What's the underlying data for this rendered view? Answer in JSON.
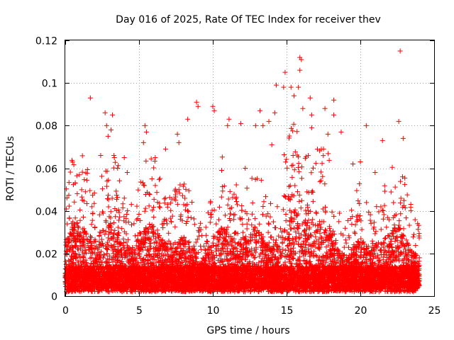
{
  "chart_data": {
    "type": "scatter",
    "title": "Day 016 of 2025, Rate Of TEC Index for receiver thev",
    "xlabel": "GPS time / hours",
    "ylabel": "ROTI / TECUs",
    "xlim": [
      0,
      25
    ],
    "ylim": [
      0,
      0.12
    ],
    "xticks": [
      0,
      5,
      10,
      15,
      20,
      25
    ],
    "yticks": [
      0,
      0.02,
      0.04,
      0.06,
      0.08,
      0.1,
      0.12
    ],
    "xtick_labels": [
      "0",
      "5",
      "10",
      "15",
      "20",
      "25"
    ],
    "ytick_labels": [
      "0",
      "0.02",
      "0.04",
      "0.06",
      "0.08",
      "0.1",
      "0.12"
    ],
    "grid": true,
    "marker": "plus",
    "color": "#ff0000",
    "data_extent_x": [
      0,
      24
    ],
    "series": [
      {
        "name": "ROTI",
        "note": "dense point cloud; representative points listed below",
        "points": [
          [
            1.7,
            0.093
          ],
          [
            2.7,
            0.086
          ],
          [
            2.8,
            0.08
          ],
          [
            3.2,
            0.085
          ],
          [
            3.1,
            0.078
          ],
          [
            2.9,
            0.075
          ],
          [
            2.4,
            0.066
          ],
          [
            3.3,
            0.066
          ],
          [
            4.0,
            0.065
          ],
          [
            5.4,
            0.08
          ],
          [
            5.5,
            0.077
          ],
          [
            5.3,
            0.072
          ],
          [
            6.8,
            0.069
          ],
          [
            7.6,
            0.076
          ],
          [
            7.7,
            0.072
          ],
          [
            8.3,
            0.083
          ],
          [
            8.9,
            0.091
          ],
          [
            9.0,
            0.089
          ],
          [
            10.0,
            0.089
          ],
          [
            10.1,
            0.087
          ],
          [
            11.1,
            0.083
          ],
          [
            11.0,
            0.08
          ],
          [
            11.9,
            0.081
          ],
          [
            12.9,
            0.08
          ],
          [
            13.2,
            0.087
          ],
          [
            13.4,
            0.08
          ],
          [
            13.8,
            0.082
          ],
          [
            14.2,
            0.086
          ],
          [
            14.3,
            0.099
          ],
          [
            14.9,
            0.105
          ],
          [
            14.8,
            0.098
          ],
          [
            15.3,
            0.098
          ],
          [
            15.5,
            0.094
          ],
          [
            15.9,
            0.112
          ],
          [
            16.0,
            0.111
          ],
          [
            15.9,
            0.106
          ],
          [
            15.8,
            0.098
          ],
          [
            16.1,
            0.088
          ],
          [
            16.6,
            0.093
          ],
          [
            16.7,
            0.085
          ],
          [
            16.7,
            0.079
          ],
          [
            17.6,
            0.088
          ],
          [
            17.8,
            0.076
          ],
          [
            18.2,
            0.092
          ],
          [
            18.2,
            0.085
          ],
          [
            18.7,
            0.077
          ],
          [
            20.4,
            0.08
          ],
          [
            21.5,
            0.073
          ],
          [
            22.6,
            0.082
          ],
          [
            22.7,
            0.115
          ],
          [
            22.9,
            0.074
          ],
          [
            17.5,
            0.069
          ],
          [
            19.5,
            0.062
          ],
          [
            10.6,
            0.059
          ],
          [
            6.1,
            0.065
          ],
          [
            4.2,
            0.058
          ],
          [
            12.2,
            0.06
          ],
          [
            14.0,
            0.071
          ],
          [
            20.0,
            0.063
          ],
          [
            21.0,
            0.058
          ]
        ]
      }
    ]
  }
}
